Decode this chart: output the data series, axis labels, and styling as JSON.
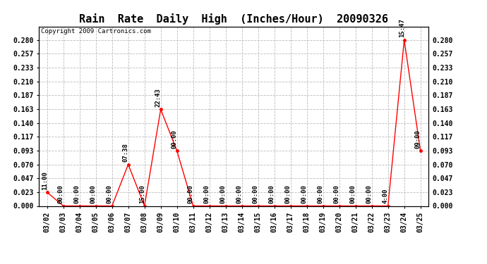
{
  "title": "Rain  Rate  Daily  High  (Inches/Hour)  20090326",
  "copyright": "Copyright 2009 Cartronics.com",
  "x_labels": [
    "03/02",
    "03/03",
    "03/04",
    "03/05",
    "03/06",
    "03/07",
    "03/08",
    "03/09",
    "03/10",
    "03/11",
    "03/12",
    "03/13",
    "03/14",
    "03/15",
    "03/16",
    "03/17",
    "03/18",
    "03/19",
    "03/20",
    "03/21",
    "03/22",
    "03/23",
    "03/24",
    "03/25"
  ],
  "y_values": [
    0.023,
    0.0,
    0.0,
    0.0,
    0.0,
    0.07,
    0.0,
    0.163,
    0.093,
    0.0,
    0.0,
    0.0,
    0.0,
    0.0,
    0.0,
    0.0,
    0.0,
    0.0,
    0.0,
    0.0,
    0.0,
    0.0,
    0.28,
    0.093
  ],
  "annotations": [
    {
      "index": 0,
      "label": "11:00"
    },
    {
      "index": 1,
      "label": "00:00"
    },
    {
      "index": 2,
      "label": "00:00"
    },
    {
      "index": 3,
      "label": "00:00"
    },
    {
      "index": 4,
      "label": "00:00"
    },
    {
      "index": 5,
      "label": "07:38"
    },
    {
      "index": 6,
      "label": "15:00"
    },
    {
      "index": 7,
      "label": "22:43"
    },
    {
      "index": 8,
      "label": "00:00"
    },
    {
      "index": 9,
      "label": "00:00"
    },
    {
      "index": 10,
      "label": "00:00"
    },
    {
      "index": 11,
      "label": "00:00"
    },
    {
      "index": 12,
      "label": "00:00"
    },
    {
      "index": 13,
      "label": "00:00"
    },
    {
      "index": 14,
      "label": "00:00"
    },
    {
      "index": 15,
      "label": "00:00"
    },
    {
      "index": 16,
      "label": "00:00"
    },
    {
      "index": 17,
      "label": "00:00"
    },
    {
      "index": 18,
      "label": "00:00"
    },
    {
      "index": 19,
      "label": "00:00"
    },
    {
      "index": 20,
      "label": "00:00"
    },
    {
      "index": 21,
      "label": "4:00"
    },
    {
      "index": 22,
      "label": "15:47"
    },
    {
      "index": 23,
      "label": "09:00"
    }
  ],
  "line_color": "#ff0000",
  "marker_color": "#ff0000",
  "bg_color": "#ffffff",
  "grid_color": "#bbbbbb",
  "ylim": [
    0.0,
    0.303
  ],
  "yticks": [
    0.0,
    0.023,
    0.047,
    0.07,
    0.093,
    0.117,
    0.14,
    0.163,
    0.187,
    0.21,
    0.233,
    0.257,
    0.28
  ],
  "title_fontsize": 11,
  "tick_fontsize": 7,
  "annot_fontsize": 6.5,
  "copyright_fontsize": 6.5,
  "figwidth": 6.9,
  "figheight": 3.75,
  "dpi": 100
}
